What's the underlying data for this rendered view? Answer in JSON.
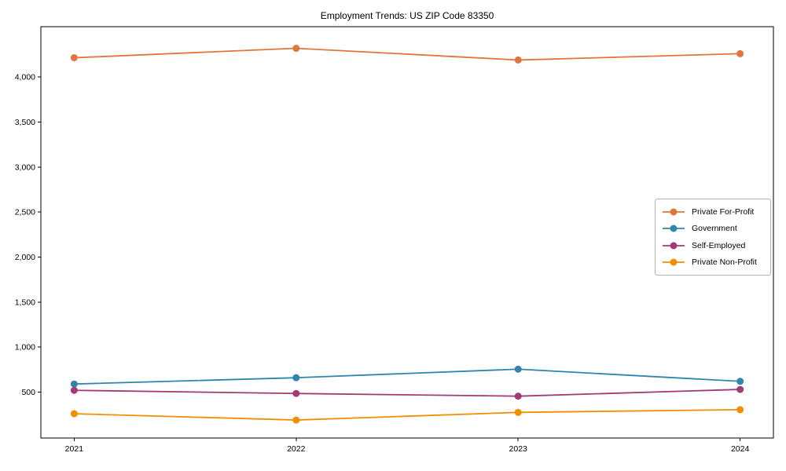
{
  "chart_data": {
    "type": "line",
    "title": "Employment Trends: US ZIP Code 83350",
    "x": [
      2021,
      2022,
      2023,
      2024
    ],
    "x_tick_labels": [
      "2021",
      "2022",
      "2023",
      "2024"
    ],
    "series": [
      {
        "name": "Private For-Profit",
        "color": "#E0763C",
        "values": [
          4215,
          4320,
          4190,
          4260
        ]
      },
      {
        "name": "Government",
        "color": "#2E86AB",
        "values": [
          590,
          660,
          755,
          620
        ]
      },
      {
        "name": "Self-Employed",
        "color": "#A23B72",
        "values": [
          520,
          485,
          455,
          530
        ]
      },
      {
        "name": "Private Non-Profit",
        "color": "#F18F01",
        "values": [
          260,
          190,
          275,
          305
        ]
      }
    ],
    "yticks": [
      500,
      1000,
      1500,
      2000,
      2500,
      3000,
      3500,
      4000
    ],
    "ytick_labels": [
      "500",
      "1,000",
      "1,500",
      "2,000",
      "2,500",
      "3,000",
      "3,500",
      "4,000"
    ],
    "ylim": [
      -10,
      4560
    ],
    "xlim": [
      2020.85,
      2024.15
    ],
    "grid": false,
    "legend_position": "center-right",
    "axis_color": "#000000",
    "background_color": "#ffffff"
  }
}
